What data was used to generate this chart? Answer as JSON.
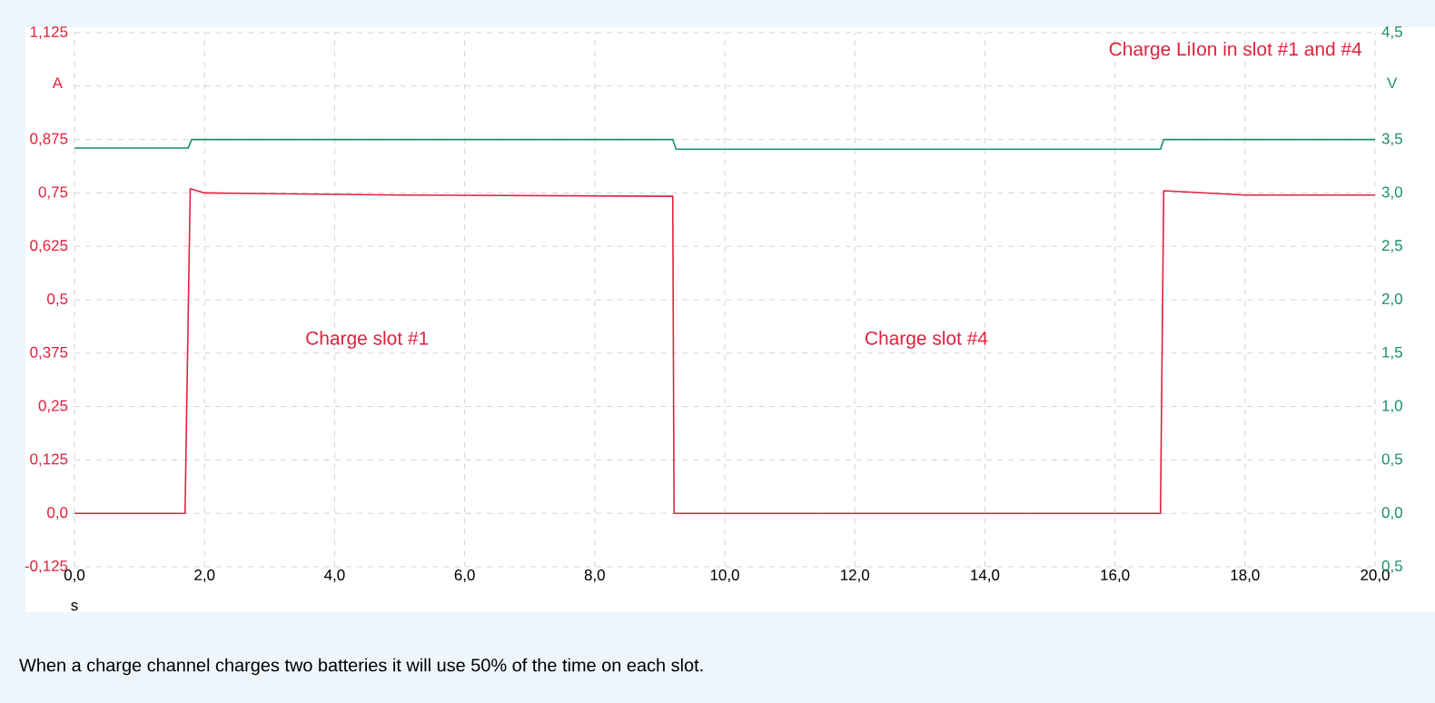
{
  "chart_data": {
    "type": "line",
    "title": "Charge LiIon in slot #1 and #4",
    "xlabel": "s",
    "ylabel": "A",
    "y2label": "V",
    "xlim": [
      0,
      20
    ],
    "xticks": [
      {
        "value": 0,
        "label": "0,0"
      },
      {
        "value": 2,
        "label": "2,0"
      },
      {
        "value": 4,
        "label": "4,0"
      },
      {
        "value": 6,
        "label": "6,0"
      },
      {
        "value": 8,
        "label": "8,0"
      },
      {
        "value": 10,
        "label": "10,0"
      },
      {
        "value": 12,
        "label": "12,0"
      },
      {
        "value": 14,
        "label": "14,0"
      },
      {
        "value": 16,
        "label": "16,0"
      },
      {
        "value": 18,
        "label": "18,0"
      },
      {
        "value": 20,
        "label": "20,0"
      }
    ],
    "ylim": [
      -0.125,
      1.125
    ],
    "yticks": [
      {
        "value": -0.125,
        "label": "-0,125"
      },
      {
        "value": 0,
        "label": "0,0"
      },
      {
        "value": 0.125,
        "label": "0,125"
      },
      {
        "value": 0.25,
        "label": "0,25"
      },
      {
        "value": 0.375,
        "label": "0,375"
      },
      {
        "value": 0.5,
        "label": "0,5"
      },
      {
        "value": 0.625,
        "label": "0,625"
      },
      {
        "value": 0.75,
        "label": "0,75"
      },
      {
        "value": 0.875,
        "label": "0,875"
      },
      {
        "value": 1.0,
        "label": null
      },
      {
        "value": 1.125,
        "label": "1,125"
      }
    ],
    "y2lim": [
      -0.5,
      4.5
    ],
    "y2ticks": [
      {
        "value": -0.5,
        "label": "0,5"
      },
      {
        "value": 0,
        "label": "0,0"
      },
      {
        "value": 0.5,
        "label": "0,5"
      },
      {
        "value": 1.0,
        "label": "1,0"
      },
      {
        "value": 1.5,
        "label": "1,5"
      },
      {
        "value": 2.0,
        "label": "2,0"
      },
      {
        "value": 2.5,
        "label": "2,5"
      },
      {
        "value": 3.0,
        "label": "3,0"
      },
      {
        "value": 3.5,
        "label": "3,5"
      },
      {
        "value": 4.0,
        "label": null
      },
      {
        "value": 4.5,
        "label": "4,5"
      }
    ],
    "series": [
      {
        "color": "#e0203c",
        "x": [
          0,
          1.7,
          1.78,
          2.0,
          5,
          9.2,
          9.22,
          16.7,
          16.75,
          18,
          20
        ],
        "values": [
          0,
          0,
          0.76,
          0.75,
          0.745,
          0.742,
          0,
          0,
          0.755,
          0.745,
          0.745
        ]
      },
      {
        "color": "#1a9060",
        "axis": "y2",
        "x": [
          0,
          1.75,
          1.8,
          9.2,
          9.25,
          16.7,
          16.75,
          20
        ],
        "values": [
          3.42,
          3.42,
          3.5,
          3.5,
          3.41,
          3.41,
          3.5,
          3.5
        ]
      }
    ],
    "annotations": [
      "Charge slot #1",
      "Charge slot #4",
      "When a charge channel charges two batteries it will use 50% of the time on each slot."
    ],
    "grid": true,
    "marker": "none",
    "line_style": "solid"
  }
}
